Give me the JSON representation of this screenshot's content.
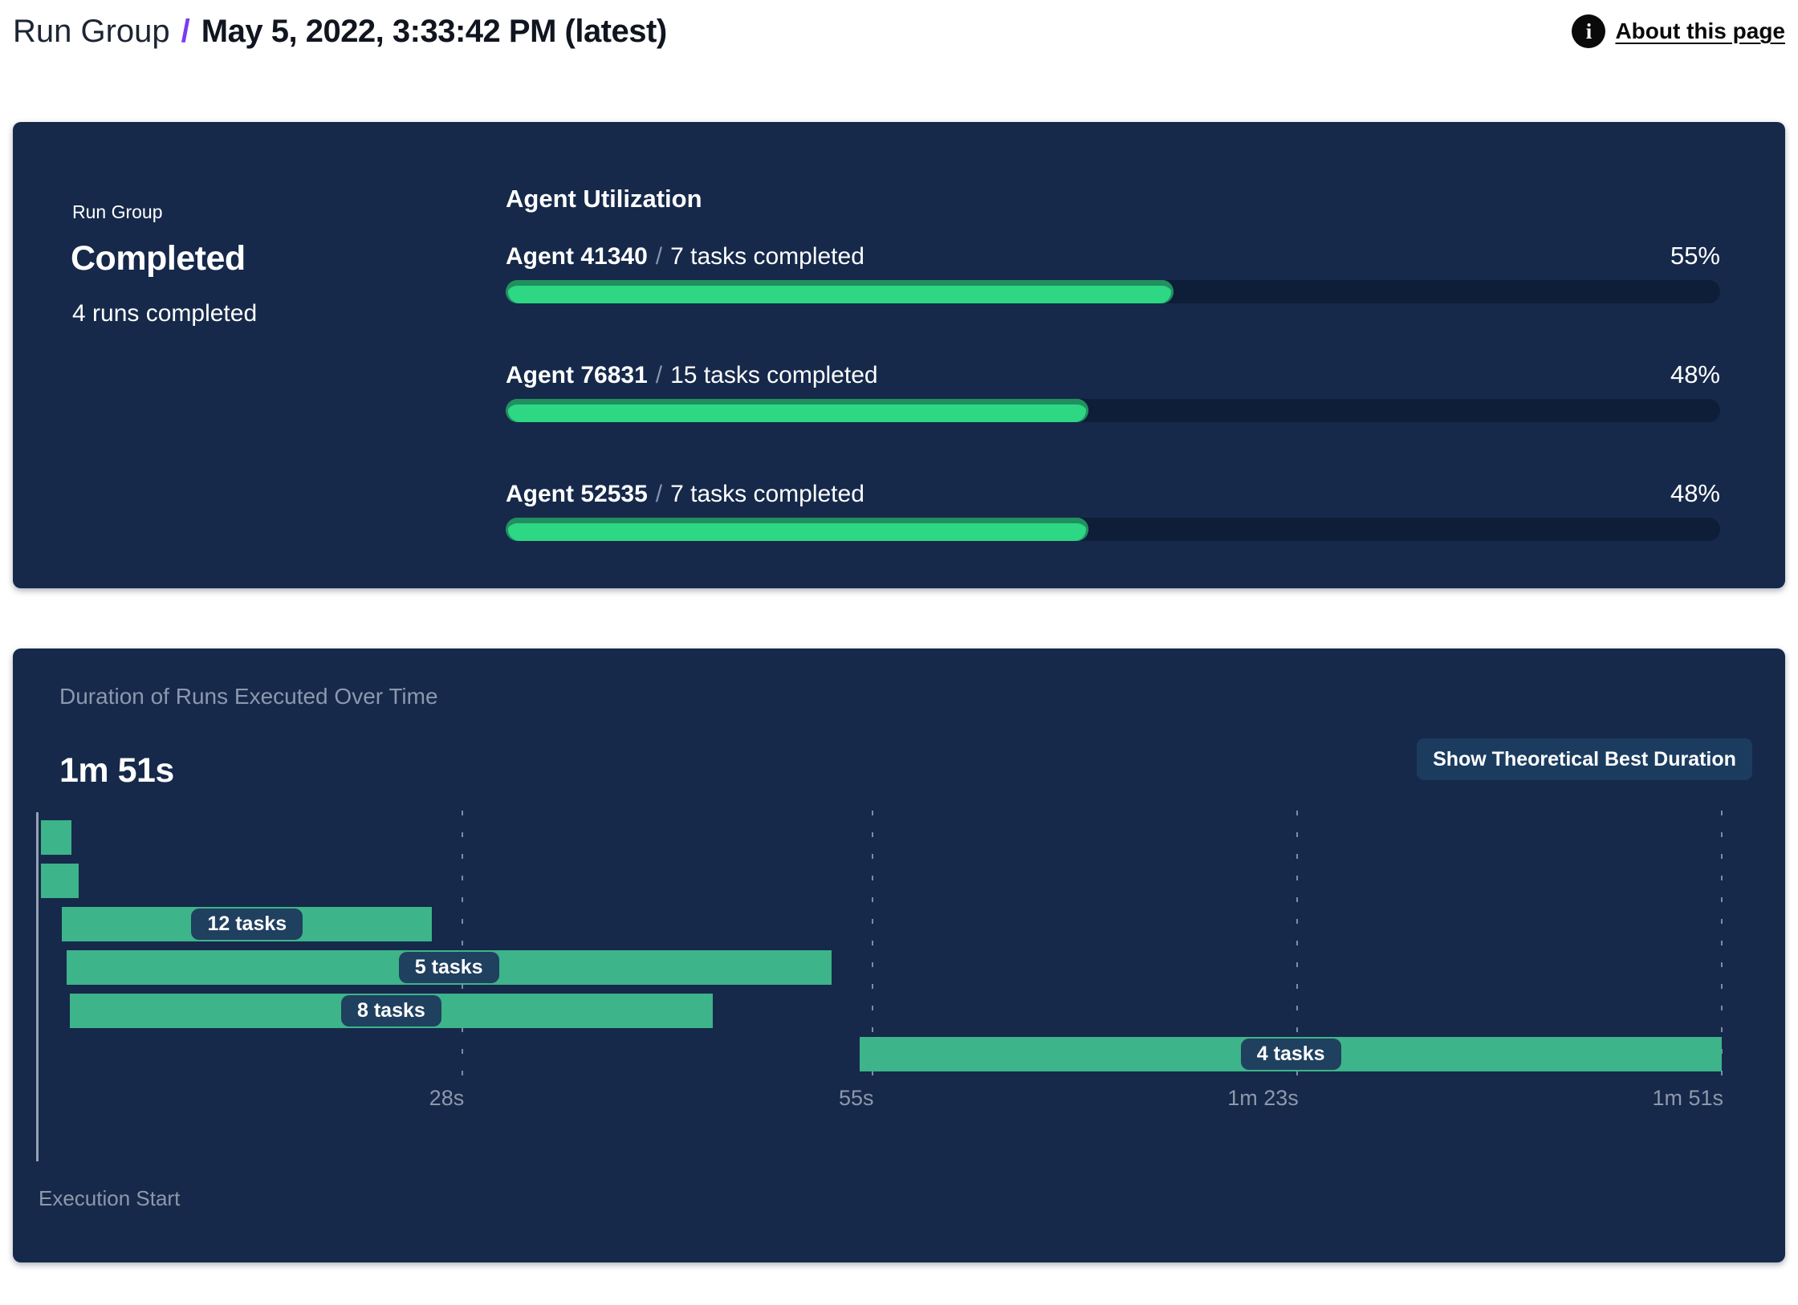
{
  "header": {
    "breadcrumb_root": "Run Group",
    "breadcrumb_separator": "/",
    "title": "May 5, 2022, 3:33:42 PM (latest)",
    "info_icon_glyph": "i",
    "about_link": "About this page"
  },
  "run_group_panel": {
    "label": "Run Group",
    "status": "Completed",
    "runs_summary": "4 runs completed",
    "utilization_title": "Agent Utilization",
    "separator": "/",
    "agents": [
      {
        "name": "Agent 41340",
        "tasks": "7 tasks completed",
        "percent": 55,
        "percent_label": "55%"
      },
      {
        "name": "Agent 76831",
        "tasks": "15 tasks completed",
        "percent": 48,
        "percent_label": "48%"
      },
      {
        "name": "Agent 52535",
        "tasks": "7 tasks completed",
        "percent": 48,
        "percent_label": "48%"
      }
    ]
  },
  "duration_panel": {
    "subtitle": "Duration of Runs Executed Over Time",
    "total_duration": "1m 51s",
    "button_label": "Show Theoretical Best Duration",
    "execution_start_label": "Execution Start"
  },
  "chart_data": {
    "type": "gantt",
    "title": "Duration of Runs Executed Over Time",
    "x_unit": "seconds",
    "x_range": [
      0,
      111
    ],
    "grid": "dashed-vertical",
    "ticks": [
      {
        "label": "28s",
        "s": 28
      },
      {
        "label": "55s",
        "s": 55
      },
      {
        "label": "1m 23s",
        "s": 83
      },
      {
        "label": "1m 51s",
        "s": 111
      }
    ],
    "runs": [
      {
        "row": 0,
        "start_s": 0.2,
        "end_s": 2.2,
        "label": null
      },
      {
        "row": 1,
        "start_s": 0.2,
        "end_s": 2.7,
        "label": null
      },
      {
        "row": 2,
        "start_s": 1.6,
        "end_s": 26.0,
        "label": "12 tasks"
      },
      {
        "row": 3,
        "start_s": 1.9,
        "end_s": 52.3,
        "label": "5 tasks"
      },
      {
        "row": 4,
        "start_s": 2.1,
        "end_s": 44.5,
        "label": "8 tasks"
      },
      {
        "row": 5,
        "start_s": 54.2,
        "end_s": 111.0,
        "label": "4 tasks"
      }
    ]
  },
  "colors": {
    "panel_bg": "#16294a",
    "progress_track": "#0e1d38",
    "progress_fill": "#2dd784",
    "progress_fill_edge": "#21905f",
    "gantt_bar": "#3db489",
    "pill_bg": "#20405f",
    "muted_text": "#8b98ae",
    "accent_purple": "#7a3bf0",
    "button_bg": "#1c3c5f"
  }
}
